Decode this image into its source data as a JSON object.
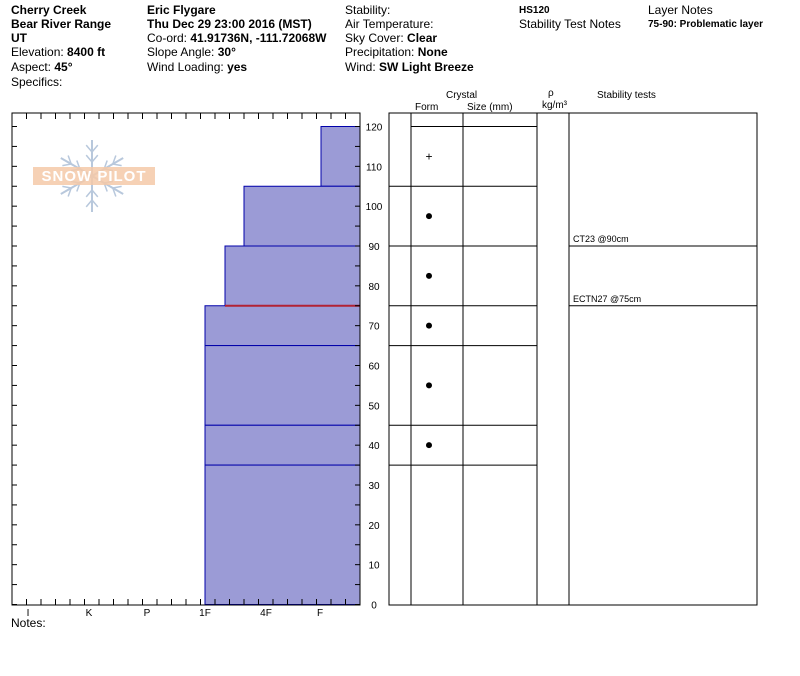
{
  "header": {
    "location": "Cherry Creek",
    "range": "Bear River Range",
    "state": "UT",
    "elevation_label": "Elevation:",
    "elevation_value": "8400 ft",
    "aspect_label": "Aspect:",
    "aspect_value": "45°",
    "specifics_label": "Specifics:",
    "observer": "Eric Flygare",
    "datetime": "Thu Dec 29 23:00 2016 (MST)",
    "coord_label": "Co-ord:",
    "coord_value": "41.91736N, -111.72068W",
    "slope_label": "Slope Angle:",
    "slope_value": "30°",
    "wind_loading_label": "Wind Loading:",
    "wind_loading_value": "yes",
    "stability_label": "Stability:",
    "air_temp_label": "Air Temperature:",
    "sky_label": "Sky Cover:",
    "sky_value": "Clear",
    "precip_label": "Precipitation:",
    "precip_value": "None",
    "wind_label": "Wind:",
    "wind_value": "SW Light Breeze",
    "hs": "HS120",
    "stability_test_notes": "Stability Test Notes",
    "layer_notes_title": "Layer Notes",
    "layer_note_1": "75-90: Problematic layer"
  },
  "logo_text": "SNOW PILOT",
  "columns": {
    "crystal": "Crystal",
    "form": "Form",
    "size": "Size (mm)",
    "rho": "ρ",
    "density_unit": "kg/m³",
    "stability_tests": "Stability tests"
  },
  "notes_label": "Notes:",
  "colors": {
    "layer_fill": "#9b9bd6",
    "layer_line": "#0000aa",
    "weak_layer": "#b22234",
    "logo": "#f4c9a8",
    "snowflake": "#b8c8dc"
  },
  "chart_data": {
    "type": "bar",
    "title": "",
    "xlabel": "",
    "ylabel": "",
    "ylim": [
      0,
      120
    ],
    "y_ticks": [
      "0",
      "10",
      "20",
      "30",
      "40",
      "50",
      "60",
      "70",
      "80",
      "90",
      "100",
      "110",
      "120"
    ],
    "hardness_scale": [
      "I",
      "K",
      "P",
      "1F",
      "4F",
      "F"
    ],
    "layers": [
      {
        "bottom": 105,
        "top": 120,
        "hardness": "F"
      },
      {
        "bottom": 90,
        "top": 105,
        "hardness": "4F"
      },
      {
        "bottom": 75,
        "top": 90,
        "hardness": "1F+"
      },
      {
        "bottom": 65,
        "top": 75,
        "hardness": "1F"
      },
      {
        "bottom": 45,
        "top": 65,
        "hardness": "1F"
      },
      {
        "bottom": 35,
        "top": 45,
        "hardness": "1F"
      },
      {
        "bottom": 0,
        "top": 35,
        "hardness": "1F"
      }
    ],
    "weak_layer_height": 75,
    "grain_symbols": [
      {
        "height": 112.5,
        "symbol": "+"
      },
      {
        "height": 97.5,
        "symbol": "•"
      },
      {
        "height": 82.5,
        "symbol": "•"
      },
      {
        "height": 70,
        "symbol": "•"
      },
      {
        "height": 55,
        "symbol": "•"
      },
      {
        "height": 40,
        "symbol": "•"
      }
    ],
    "stability_tests": [
      {
        "height": 90,
        "label": "CT23 @90cm"
      },
      {
        "height": 75,
        "label": "ECTN27 @75cm"
      }
    ]
  }
}
